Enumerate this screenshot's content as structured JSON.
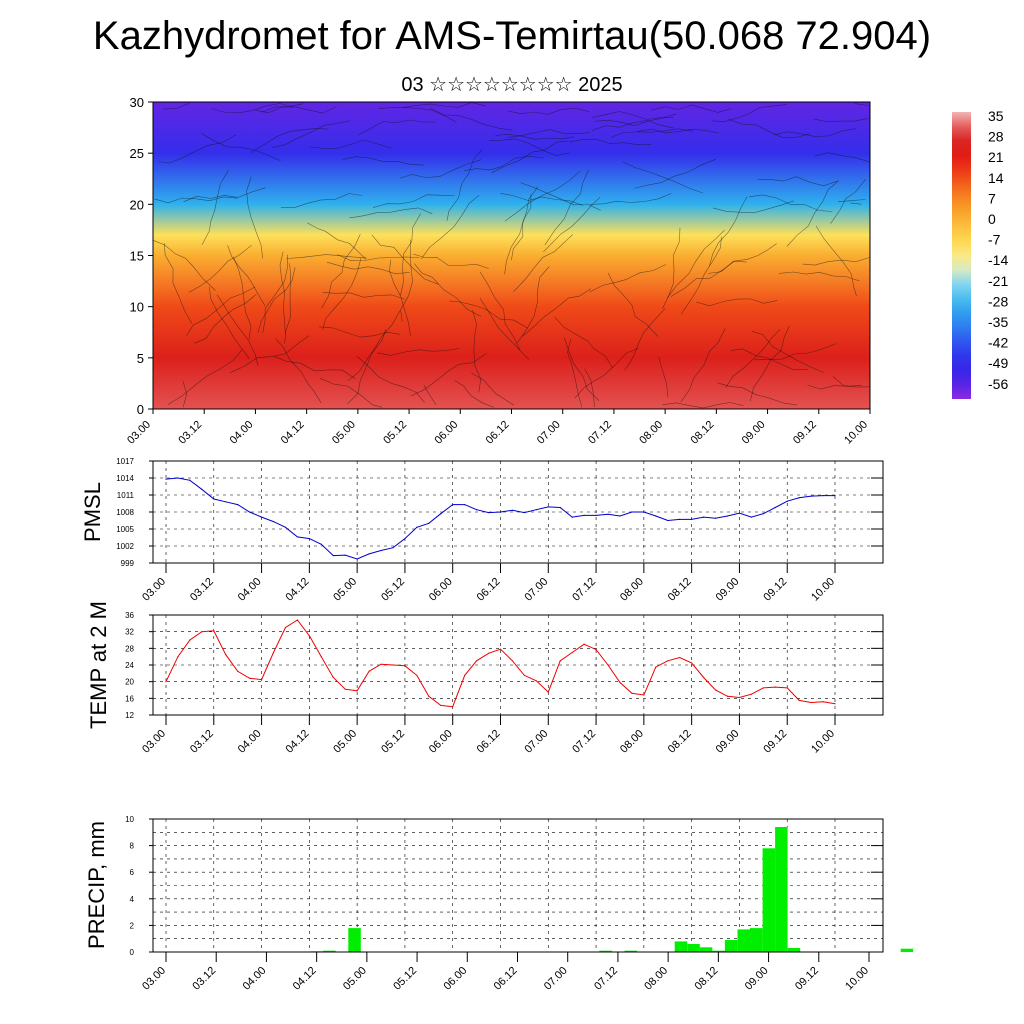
{
  "header": {
    "title": "Kazhydromet for AMS-Temirtau(50.068 72.904)",
    "subtitle": "03 ☆☆☆☆☆☆☆☆ 2025"
  },
  "time_labels": [
    "03.00",
    "03.12",
    "04.00",
    "04.12",
    "05.00",
    "05.12",
    "06.00",
    "06.12",
    "07.00",
    "07.12",
    "08.00",
    "08.12",
    "09.00",
    "09.12",
    "10.00"
  ],
  "chart_data": [
    {
      "type": "heatmap",
      "title": "",
      "xlabel": "",
      "ylabel": "",
      "ylim": [
        0,
        30
      ],
      "y_ticks": [
        0,
        5,
        10,
        15,
        20,
        25,
        30
      ],
      "x_categories": [
        "03.00",
        "03.12",
        "04.00",
        "04.12",
        "05.00",
        "05.12",
        "06.00",
        "06.12",
        "07.00",
        "07.12",
        "08.00",
        "08.12",
        "09.00",
        "09.12",
        "10.00"
      ],
      "colorbar": {
        "labels": [
          "35",
          "28",
          "21",
          "14",
          "7",
          "0",
          "-7",
          "-14",
          "-21",
          "-28",
          "-35",
          "-42",
          "-49",
          "-56"
        ],
        "range": [
          -60,
          38
        ]
      },
      "note_wind_barbs": true,
      "profile_y_levels": [
        0,
        5,
        10,
        15,
        17,
        20,
        25,
        30
      ],
      "profile_values": [
        32,
        26,
        16,
        2,
        -8,
        -28,
        -48,
        -56
      ]
    },
    {
      "type": "line",
      "ylabel": "PMSL",
      "ylim": [
        999,
        1017
      ],
      "y_ticks": [
        999,
        1002,
        1005,
        1008,
        1011,
        1014,
        1017
      ],
      "color": "#0000cc",
      "x": [
        "03.00",
        "03.03",
        "03.06",
        "03.09",
        "03.12",
        "03.15",
        "03.18",
        "03.21",
        "04.00",
        "04.03",
        "04.06",
        "04.09",
        "04.12",
        "04.15",
        "04.18",
        "04.21",
        "05.00",
        "05.03",
        "05.06",
        "05.09",
        "05.12",
        "05.15",
        "05.18",
        "05.21",
        "06.00",
        "06.03",
        "06.06",
        "06.09",
        "06.12",
        "06.15",
        "06.18",
        "06.21",
        "07.00",
        "07.03",
        "07.06",
        "07.09",
        "07.12",
        "07.15",
        "07.18",
        "07.21",
        "08.00",
        "08.03",
        "08.06",
        "08.09",
        "08.12",
        "08.15",
        "08.18",
        "08.21",
        "09.00",
        "09.03",
        "09.06",
        "09.09",
        "09.12",
        "09.15",
        "09.18",
        "09.21",
        "10.00"
      ],
      "values": [
        1013.8,
        1014.0,
        1013.6,
        1012.0,
        1010.3,
        1009.8,
        1009.3,
        1008.0,
        1007.1,
        1006.3,
        1005.3,
        1003.6,
        1003.3,
        1002.3,
        1000.3,
        1000.4,
        999.7,
        1000.6,
        1001.2,
        1001.7,
        1003.3,
        1005.3,
        1006.0,
        1007.7,
        1009.3,
        1009.3,
        1008.4,
        1007.9,
        1008.0,
        1008.3,
        1007.9,
        1008.4,
        1008.9,
        1008.8,
        1007.1,
        1007.4,
        1007.4,
        1007.6,
        1007.3,
        1008.0,
        1008.0,
        1007.3,
        1006.5,
        1006.7,
        1006.7,
        1007.1,
        1006.9,
        1007.3,
        1007.8,
        1007.1,
        1007.7,
        1008.8,
        1009.9,
        1010.5,
        1010.8,
        1010.9,
        1010.9
      ]
    },
    {
      "type": "line",
      "ylabel": "TEMP at 2 M",
      "ylim": [
        12,
        36
      ],
      "y_ticks": [
        12,
        16,
        20,
        24,
        28,
        32,
        36
      ],
      "color": "#ee0000",
      "x": [
        "03.00",
        "03.03",
        "03.06",
        "03.09",
        "03.12",
        "03.15",
        "03.18",
        "03.21",
        "04.00",
        "04.03",
        "04.06",
        "04.09",
        "04.12",
        "04.15",
        "04.18",
        "04.21",
        "05.00",
        "05.03",
        "05.06",
        "05.09",
        "05.12",
        "05.15",
        "05.18",
        "05.21",
        "06.00",
        "06.03",
        "06.06",
        "06.09",
        "06.12",
        "06.15",
        "06.18",
        "06.21",
        "07.00",
        "07.03",
        "07.06",
        "07.09",
        "07.12",
        "07.15",
        "07.18",
        "07.21",
        "08.00",
        "08.03",
        "08.06",
        "08.09",
        "08.12",
        "08.15",
        "08.18",
        "08.21",
        "09.00",
        "09.03",
        "09.06",
        "09.09",
        "09.12",
        "09.15",
        "09.18",
        "09.21",
        "10.00"
      ],
      "values": [
        20.0,
        26.0,
        30.0,
        32.0,
        32.2,
        26.5,
        22.5,
        20.8,
        20.5,
        27.0,
        33.0,
        34.8,
        31.0,
        26.0,
        21.0,
        18.2,
        17.8,
        22.5,
        24.2,
        24.0,
        23.8,
        21.5,
        16.5,
        14.3,
        14.0,
        21.5,
        25.0,
        26.8,
        27.8,
        25.0,
        21.5,
        20.2,
        17.5,
        25.0,
        27.0,
        29.0,
        27.7,
        24.0,
        19.8,
        17.2,
        16.8,
        23.5,
        25.0,
        25.8,
        24.5,
        21.0,
        18.0,
        16.5,
        16.2,
        17.0,
        18.5,
        18.7,
        18.5,
        15.5,
        15.0,
        15.2,
        14.7
      ]
    },
    {
      "type": "bar",
      "ylabel": "PRECIP, mm",
      "ylim": [
        0,
        10
      ],
      "y_ticks": [
        0,
        2,
        4,
        6,
        8,
        10
      ],
      "color": "#00ee00",
      "x_labels": [
        "03.00",
        "03.12",
        "04.00",
        "04.12",
        "05.00",
        "05.12",
        "06.00",
        "06.12",
        "07.00",
        "07.12",
        "08.00",
        "08.12",
        "09.00",
        "09.12",
        "10.00"
      ],
      "bar_times_hours": [
        177,
        171,
        165,
        159,
        153,
        150,
        147,
        144,
        141,
        138,
        135,
        132,
        129,
        126,
        123,
        120,
        117,
        114,
        111,
        108,
        105,
        96,
        93,
        90,
        87,
        84,
        81,
        78,
        75,
        72,
        69,
        66,
        63,
        60,
        57,
        54,
        51,
        48,
        45,
        42,
        39,
        36,
        33,
        30,
        27,
        24,
        21,
        18,
        15,
        12,
        9,
        6,
        3,
        0
      ],
      "values": [
        0.25,
        0,
        0,
        0,
        0,
        0.3,
        9.4,
        7.8,
        1.8,
        1.7,
        0.9,
        0.1,
        0.35,
        0.6,
        0.8,
        0,
        0,
        0,
        0.1,
        0,
        0.1,
        0,
        0,
        0,
        0,
        0,
        0,
        0,
        0,
        0,
        0,
        0,
        0,
        0,
        0,
        0,
        0,
        0,
        1.8,
        0,
        0.1,
        0.05,
        0.03,
        0,
        0,
        0,
        0,
        0,
        0,
        0,
        0,
        0,
        0,
        0
      ]
    }
  ]
}
